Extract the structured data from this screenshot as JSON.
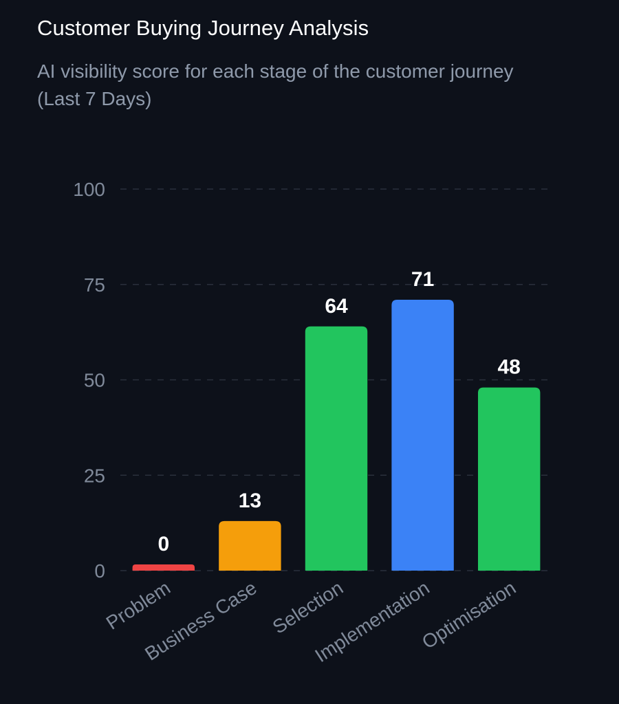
{
  "header": {
    "title": "Customer Buying Journey Analysis",
    "subtitle": "AI visibility score for each stage of the customer journey (Last 7 Days)"
  },
  "chart_data": {
    "type": "bar",
    "title": "Customer Buying Journey Analysis",
    "subtitle": "AI visibility score for each stage of the customer journey (Last 7 Days)",
    "categories": [
      "Problem",
      "Business Case",
      "Selection",
      "Implementation",
      "Optimisation"
    ],
    "values": [
      0,
      13,
      64,
      71,
      48
    ],
    "value_labels": [
      "0",
      "13",
      "64",
      "71",
      "48"
    ],
    "bar_colors": [
      "#ef4444",
      "#f59e0b",
      "#22c55e",
      "#3b82f6",
      "#22c55e"
    ],
    "xlabel": "",
    "ylabel": "",
    "ylim": [
      0,
      100
    ],
    "yticks": [
      0,
      25,
      50,
      75,
      100
    ],
    "ytick_labels": [
      "0",
      "25",
      "50",
      "75",
      "100"
    ],
    "grid": true,
    "data_labels": true,
    "legend": "none"
  },
  "colors": {
    "background": "#0d111a",
    "title": "#ffffff",
    "subtitle": "#8f9aab",
    "axis_text": "#808a9a",
    "grid": "#2a303c"
  }
}
